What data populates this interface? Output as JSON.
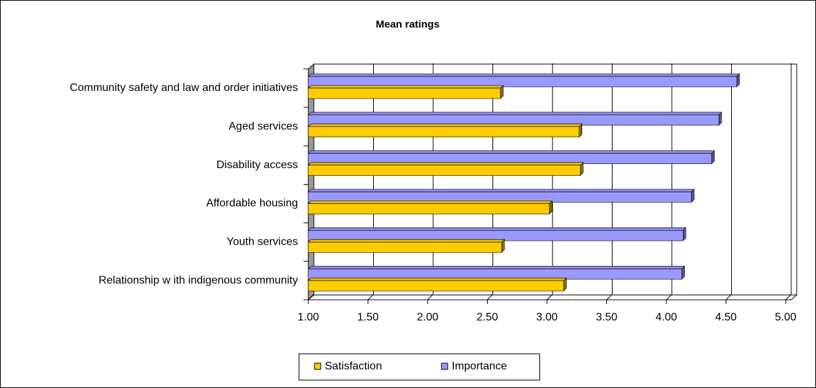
{
  "chart_data": {
    "type": "bar3d",
    "title": "Mean ratings",
    "categories": [
      "Community safety and law  and order initiatives",
      "Aged services",
      "Disability access",
      "Affordable housing",
      "Youth services",
      "Relationship w ith indigenous community"
    ],
    "series": [
      {
        "name": "Importance",
        "color": "#9999ff",
        "values": [
          4.59,
          4.44,
          4.38,
          4.21,
          4.14,
          4.13
        ]
      },
      {
        "name": "Satisfaction",
        "color": "#ffcc00",
        "values": [
          2.61,
          3.27,
          3.28,
          3.02,
          2.62,
          3.14
        ]
      }
    ],
    "legend_order": [
      "Satisfaction",
      "Importance"
    ],
    "xlim": [
      1,
      5
    ],
    "xticks": [
      {
        "value": 1,
        "label": "1.00"
      },
      {
        "value": 1.5,
        "label": "1.50"
      },
      {
        "value": 2,
        "label": "2.00"
      },
      {
        "value": 2.5,
        "label": "2.50"
      },
      {
        "value": 3,
        "label": "3.00"
      },
      {
        "value": 3.5,
        "label": "3.50"
      },
      {
        "value": 4,
        "label": "4.00"
      },
      {
        "value": 4.5,
        "label": "4.50"
      },
      {
        "value": 5,
        "label": "5.00"
      }
    ],
    "grid": true
  }
}
